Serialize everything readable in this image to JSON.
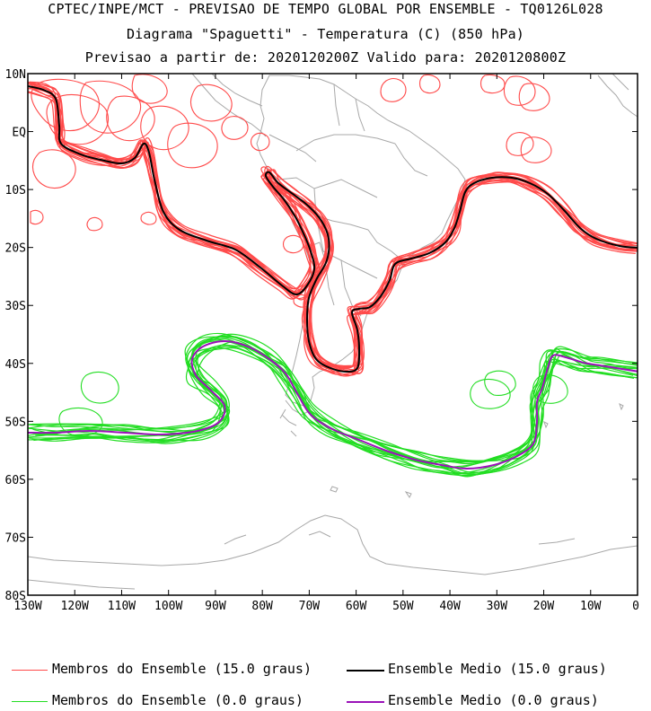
{
  "title": {
    "line1": "CPTEC/INPE/MCT - PREVISAO DE TEMPO GLOBAL POR ENSEMBLE - TQ0126L028",
    "line2": "Diagrama \"Spaguetti\" - Temperatura (C) (850 hPa)",
    "line3": "Previsao a partir de: 2020120200Z  Valido para: 2020120800Z"
  },
  "map": {
    "lat_labels": [
      "10N",
      "EQ",
      "10S",
      "20S",
      "30S",
      "40S",
      "50S",
      "60S",
      "70S",
      "80S"
    ],
    "lat_values": [
      10,
      0,
      -10,
      -20,
      -30,
      -40,
      -50,
      -60,
      -70,
      -80
    ],
    "lon_labels": [
      "130W",
      "120W",
      "110W",
      "100W",
      "90W",
      "80W",
      "70W",
      "60W",
      "50W",
      "40W",
      "30W",
      "20W",
      "10W",
      "0"
    ],
    "lon_values": [
      -130,
      -120,
      -110,
      -100,
      -90,
      -80,
      -70,
      -60,
      -50,
      -40,
      -30,
      -20,
      -10,
      0
    ],
    "extent": {
      "lon_min": -130,
      "lon_max": 0,
      "lat_min": -80,
      "lat_max": 10
    },
    "colors": {
      "member_15": "#ff4a4a",
      "mean_15": "#000000",
      "member_0": "#22dd22",
      "mean_0": "#9a12b8",
      "coast": "#a8a8a8",
      "frame": "#000000"
    }
  },
  "legend": {
    "members_15": "Membros do Ensemble (15.0 graus)",
    "mean_15": "Ensemble Medio (15.0 graus)",
    "members_0": "Membros do Ensemble (0.0 graus)",
    "mean_0": "Ensemble Medio (0.0 graus)"
  }
}
